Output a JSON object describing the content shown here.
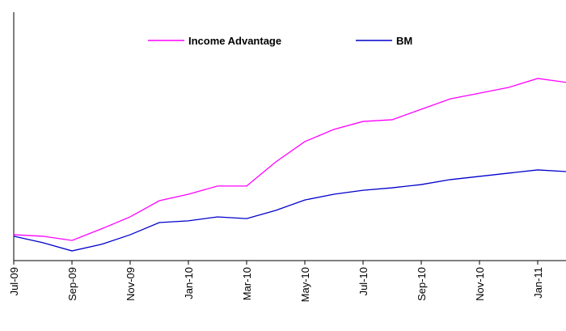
{
  "chart_data": {
    "type": "line",
    "categories": [
      "Jul-09",
      null,
      "Sep-09",
      null,
      "Nov-09",
      null,
      "Jan-10",
      null,
      "Mar-10",
      null,
      "May-10",
      null,
      "Jul-10",
      null,
      "Sep-10",
      null,
      "Nov-10",
      null,
      "Jan-11",
      null
    ],
    "series": [
      {
        "name": "Income Advantage",
        "color": "#ff00ff",
        "values": [
          10.4,
          9.8,
          8.1,
          12.7,
          17.6,
          24.1,
          26.7,
          30.0,
          30.0,
          39.7,
          47.9,
          52.8,
          56.0,
          56.7,
          60.9,
          65.1,
          67.4,
          69.7,
          73.3,
          71.7
        ]
      },
      {
        "name": "BM",
        "color": "#0000cc",
        "values": [
          9.8,
          7.2,
          3.9,
          6.5,
          10.4,
          15.3,
          16.0,
          17.6,
          16.9,
          20.2,
          24.4,
          26.7,
          28.3,
          29.3,
          30.6,
          32.6,
          33.9,
          35.2,
          36.5,
          35.8
        ]
      }
    ],
    "ylim": [
      0,
      100
    ],
    "grid": false,
    "legend": "top"
  }
}
